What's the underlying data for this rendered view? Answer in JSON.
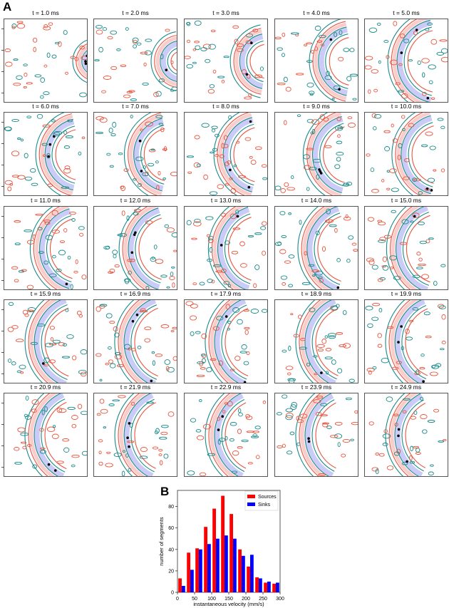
{
  "panel_labels": {
    "a": "A",
    "b": "B"
  },
  "panel_a": {
    "frame_titles": [
      "t = 1.0 ms",
      "t = 2.0 ms",
      "t = 3.0 ms",
      "t = 4.0 ms",
      "t = 5.0 ms",
      "t = 6.0 ms",
      "t = 7.0 ms",
      "t = 8.0 ms",
      "t = 9.0 ms",
      "t = 10.0 ms",
      "t = 11.0 ms",
      "t = 12.0 ms",
      "t = 13.0 ms",
      "t = 14.0 ms",
      "t = 15.0 ms",
      "t = 15.9 ms",
      "t = 16.9 ms",
      "t = 17.9 ms",
      "t = 18.9 ms",
      "t = 19.9 ms",
      "t = 20.9 ms",
      "t = 21.9 ms",
      "t = 22.9 ms",
      "t = 23.9 ms",
      "t = 24.9 ms"
    ],
    "colors": {
      "source": "#e8553e",
      "sink": "#1a8a8a",
      "blue_fill": "#8c8cf0",
      "red_fill": "#f07070",
      "marker": "#000000"
    }
  },
  "chart_data": {
    "type": "bar",
    "title": "",
    "xlabel": "instantaneous velocity (mm/s)",
    "ylabel": "number of segments",
    "x_ticks": [
      0,
      50,
      100,
      150,
      200,
      250,
      300
    ],
    "y_ticks": [
      0,
      20,
      40,
      60,
      80
    ],
    "xlim": [
      0,
      300
    ],
    "ylim": [
      0,
      95
    ],
    "bin_centers": [
      12.5,
      37.5,
      62.5,
      87.5,
      112.5,
      137.5,
      162.5,
      187.5,
      212.5,
      237.5,
      262.5,
      287.5
    ],
    "legend_position": "top-right",
    "series": [
      {
        "name": "Sources",
        "color": "#ff0000",
        "values": [
          13,
          37,
          41,
          61,
          78,
          90,
          73,
          40,
          24,
          14,
          9,
          8
        ]
      },
      {
        "name": "Sinks",
        "color": "#0000ff",
        "values": [
          6,
          21,
          40,
          45,
          50,
          53,
          50,
          34,
          35,
          13,
          10,
          9
        ]
      }
    ]
  }
}
